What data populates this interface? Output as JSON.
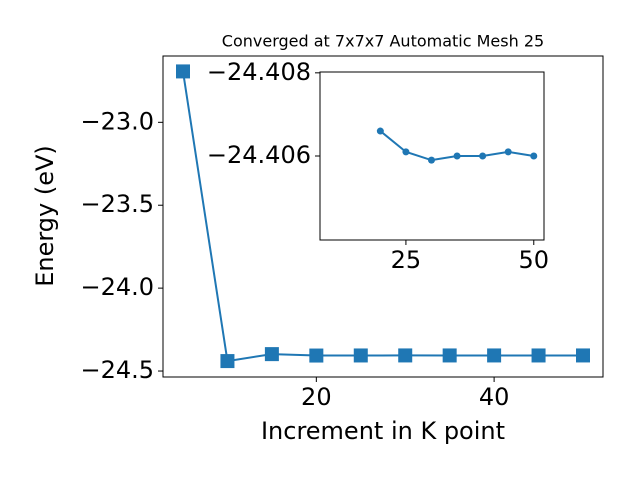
{
  "chart_data": [
    {
      "type": "line",
      "title": "Converged at 7x7x7 Automatic Mesh 25",
      "x_label": "Increment in K point",
      "y_label": "Energy (eV)",
      "x": [
        5,
        10,
        15,
        20,
        25,
        30,
        35,
        40,
        45,
        50
      ],
      "series": [
        {
          "color": "#1f77b4",
          "marker": "square",
          "values": [
            -22.693,
            -24.44,
            -24.398,
            -24.4066,
            -24.4061,
            -24.4059,
            -24.406,
            -24.406,
            -24.4061,
            -24.406
          ]
        }
      ],
      "xlim": [
        2.75,
        52.25
      ],
      "ylim": [
        -24.536,
        -22.6
      ],
      "xticks": [
        20,
        40
      ],
      "yticks": [
        {
          "value": -23.0,
          "label": "−23.0"
        },
        {
          "value": -23.5,
          "label": "−23.5"
        },
        {
          "value": -24.0,
          "label": "−24.0"
        },
        {
          "value": -24.5,
          "label": "−24.5"
        }
      ]
    },
    {
      "type": "line",
      "x": [
        20,
        25,
        30,
        35,
        40,
        45,
        50
      ],
      "series": [
        {
          "color": "#1f77b4",
          "marker": "circle",
          "values": [
            -24.4066,
            -24.4061,
            -24.4059,
            -24.406,
            -24.406,
            -24.4061,
            -24.406
          ]
        }
      ],
      "xlim": [
        8.2,
        52
      ],
      "ylim": [
        -24.40398,
        -24.40802
      ],
      "xticks": [
        25,
        50
      ],
      "yticks": [
        {
          "value": -24.408,
          "label": "−24.408"
        },
        {
          "value": -24.406,
          "label": "−24.406"
        }
      ]
    }
  ]
}
